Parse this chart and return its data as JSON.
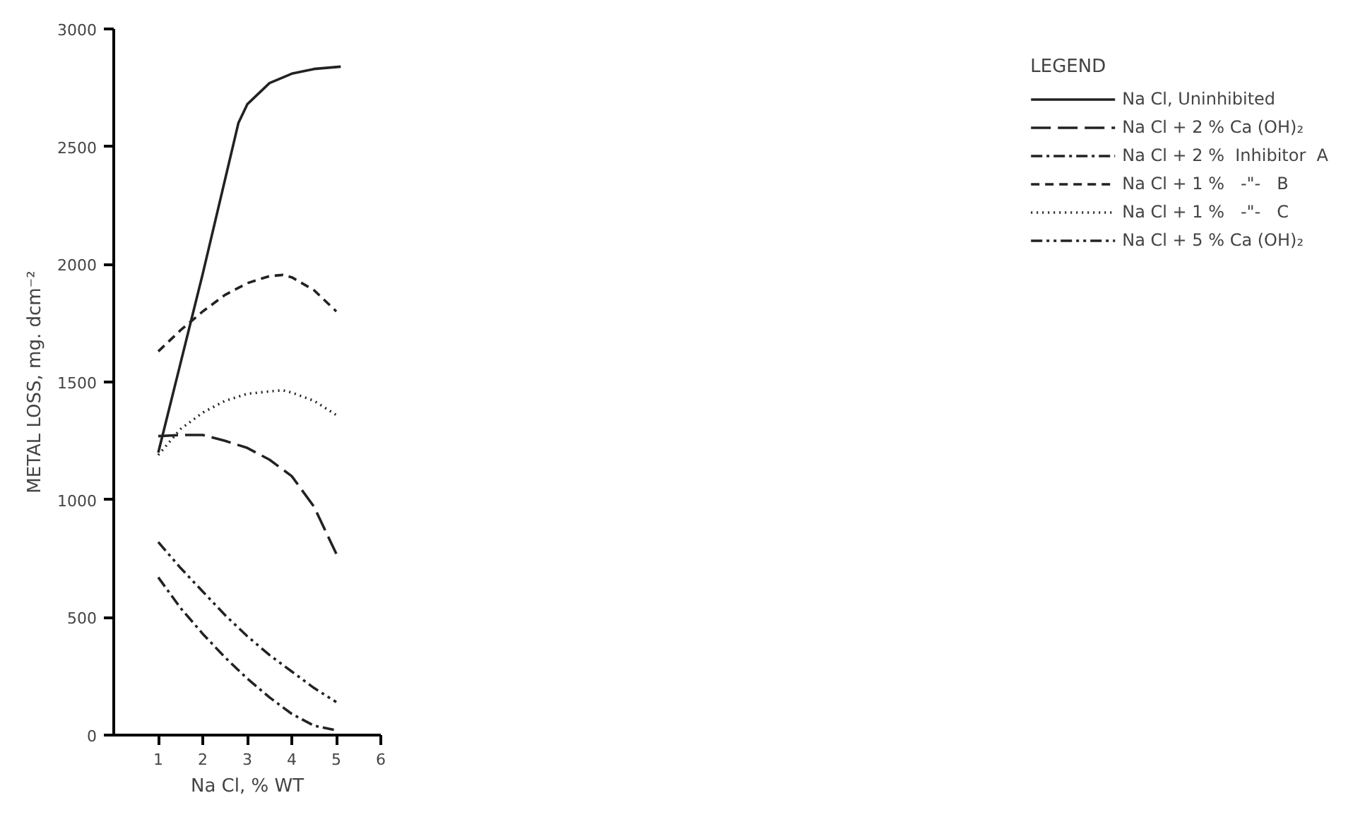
{
  "chart_data": {
    "type": "line",
    "xlabel": "Na Cl, % WT",
    "ylabel": "METAL LOSS, mg. dcm⁻²",
    "legend_title": "LEGEND",
    "legend": "right",
    "grid": false,
    "marker": "none",
    "xlim": [
      0,
      6
    ],
    "xticks": [
      1,
      2,
      3,
      4,
      5,
      6
    ],
    "ylim": [
      0,
      3000
    ],
    "yticks": [
      0,
      500,
      1000,
      1500,
      2000,
      2500,
      3000
    ],
    "series": [
      {
        "name": "Na Cl, Uninhibited",
        "color": "#222222",
        "line_style": "solid",
        "x": [
          1,
          1.5,
          2,
          2.5,
          2.8,
          3,
          3.5,
          4,
          4.5,
          5.1
        ],
        "values": [
          1200,
          1580,
          1960,
          2360,
          2600,
          2680,
          2770,
          2810,
          2830,
          2840
        ]
      },
      {
        "name": "Na Cl + 2 % Ca (OH)₂",
        "color": "#222222",
        "line_style": "longdash",
        "x": [
          1,
          1.5,
          2,
          2.5,
          3,
          3.5,
          4,
          4.5,
          5
        ],
        "values": [
          1270,
          1275,
          1275,
          1250,
          1220,
          1170,
          1100,
          970,
          770
        ]
      },
      {
        "name": "Na Cl + 2 %  Inhibitor  A",
        "color": "#222222",
        "line_style": "dashdot",
        "x": [
          1,
          1.5,
          2,
          2.5,
          3,
          3.5,
          4,
          4.5,
          5
        ],
        "values": [
          670,
          540,
          430,
          330,
          240,
          160,
          90,
          40,
          20
        ]
      },
      {
        "name": "Na Cl + 1 %   -\"-   B",
        "color": "#222222",
        "line_style": "dashed",
        "x": [
          1,
          1.5,
          2,
          2.5,
          3,
          3.5,
          3.8,
          4,
          4.5,
          5
        ],
        "values": [
          1630,
          1720,
          1800,
          1870,
          1920,
          1950,
          1955,
          1945,
          1890,
          1800
        ]
      },
      {
        "name": "Na Cl + 1 %   -\"-   C",
        "color": "#222222",
        "line_style": "dotted",
        "x": [
          1,
          1.5,
          2,
          2.5,
          3,
          3.5,
          3.8,
          4,
          4.5,
          5
        ],
        "values": [
          1190,
          1300,
          1370,
          1420,
          1450,
          1460,
          1465,
          1455,
          1420,
          1360
        ]
      },
      {
        "name": "Na Cl + 5 % Ca (OH)₂",
        "color": "#222222",
        "line_style": "dashdotdot",
        "x": [
          1,
          1.5,
          2,
          2.5,
          3,
          3.5,
          4,
          4.5,
          5
        ],
        "values": [
          820,
          710,
          610,
          510,
          420,
          340,
          270,
          200,
          140
        ]
      }
    ]
  }
}
